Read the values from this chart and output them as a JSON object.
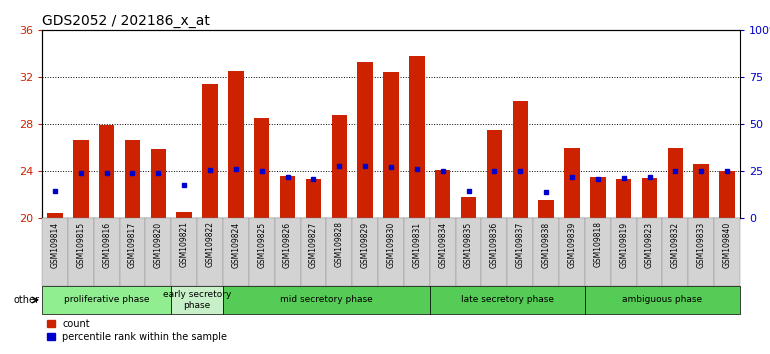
{
  "title": "GDS2052 / 202186_x_at",
  "samples": [
    "GSM109814",
    "GSM109815",
    "GSM109816",
    "GSM109817",
    "GSM109820",
    "GSM109821",
    "GSM109822",
    "GSM109824",
    "GSM109825",
    "GSM109826",
    "GSM109827",
    "GSM109828",
    "GSM109829",
    "GSM109830",
    "GSM109831",
    "GSM109834",
    "GSM109835",
    "GSM109836",
    "GSM109837",
    "GSM109838",
    "GSM109839",
    "GSM109818",
    "GSM109819",
    "GSM109823",
    "GSM109832",
    "GSM109833",
    "GSM109840"
  ],
  "count_values": [
    20.4,
    26.6,
    27.9,
    26.6,
    25.9,
    20.5,
    31.4,
    32.5,
    28.5,
    23.6,
    23.3,
    28.8,
    33.3,
    32.4,
    33.8,
    24.1,
    21.8,
    27.5,
    30.0,
    21.5,
    26.0,
    23.5,
    23.3,
    23.4,
    26.0,
    24.6,
    24.0
  ],
  "percentile_values": [
    22.3,
    23.8,
    23.8,
    23.8,
    23.8,
    22.8,
    24.1,
    24.2,
    24.0,
    23.5,
    23.3,
    24.4,
    24.4,
    24.3,
    24.2,
    24.0,
    22.3,
    24.0,
    24.0,
    22.2,
    23.5,
    23.3,
    23.4,
    23.5,
    24.0,
    24.0,
    24.0
  ],
  "phases": [
    {
      "label": "proliferative phase",
      "start": 0,
      "end": 5,
      "color": "#90EE90"
    },
    {
      "label": "early secretory\nphase",
      "start": 5,
      "end": 7,
      "color": "#c8f0c8"
    },
    {
      "label": "mid secretory phase",
      "start": 7,
      "end": 15,
      "color": "#55CC55"
    },
    {
      "label": "late secretory phase",
      "start": 15,
      "end": 21,
      "color": "#55CC55"
    },
    {
      "label": "ambiguous phase",
      "start": 21,
      "end": 27,
      "color": "#55CC55"
    }
  ],
  "ylim_left": [
    20,
    36
  ],
  "ylim_right": [
    0,
    100
  ],
  "yticks_left": [
    20,
    24,
    28,
    32,
    36
  ],
  "yticks_right": [
    0,
    25,
    50,
    75,
    100
  ],
  "bar_color": "#CC2200",
  "marker_color": "#0000CC",
  "sample_bg_color": "#D3D3D3",
  "grid_color": "#000000",
  "title_fontsize": 10,
  "tick_fontsize": 8,
  "sample_fontsize": 5.5,
  "phase_fontsize": 6.5,
  "legend_fontsize": 7
}
